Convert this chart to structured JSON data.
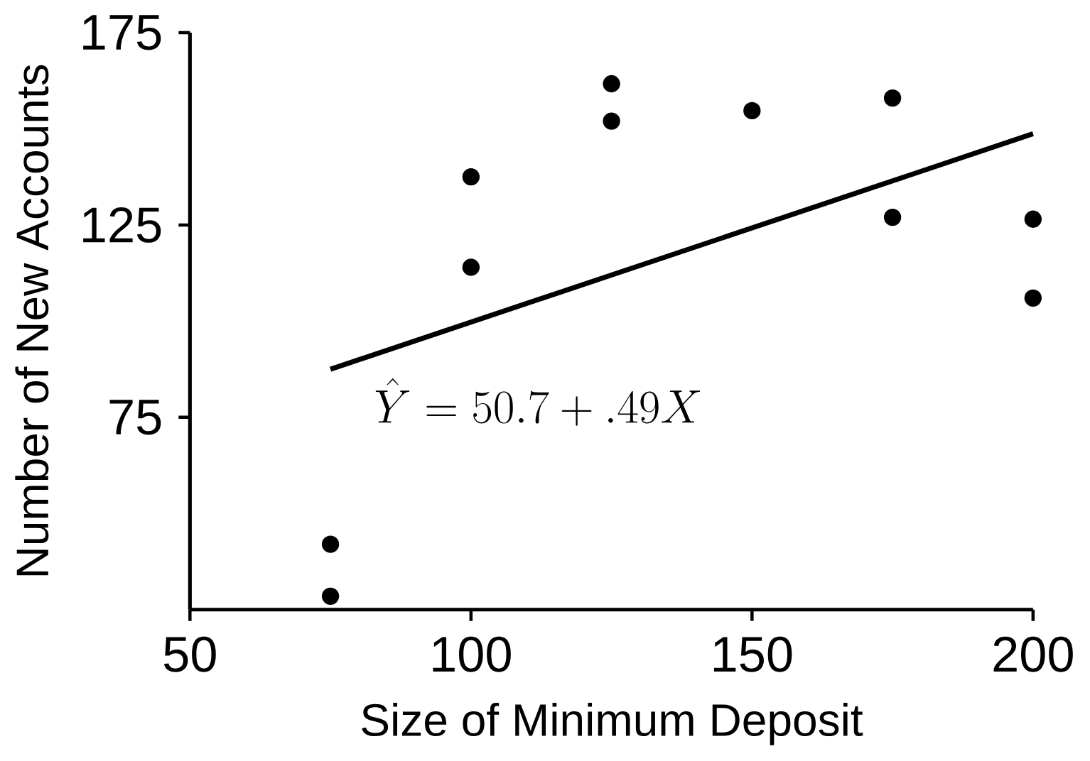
{
  "chart_data": {
    "type": "scatter",
    "xlabel": "Size of Minimum Deposit",
    "ylabel": "Number of New Accounts",
    "xlim": [
      50,
      200
    ],
    "ylim": [
      25,
      175
    ],
    "xticks": [
      50,
      100,
      150,
      200
    ],
    "yticks": [
      75,
      125,
      175
    ],
    "grid": false,
    "series": [
      {
        "color": "#000000",
        "marker": "circle",
        "x": [
          75,
          75,
          100,
          100,
          125,
          125,
          150,
          175,
          175,
          200,
          200
        ],
        "values": [
          42,
          28.5,
          137.5,
          114,
          161.7,
          152,
          154.7,
          158,
          127,
          126.5,
          106
        ]
      },
      {
        "type": "line",
        "color": "#000000",
        "x": [
          75,
          200
        ],
        "values": [
          87.5,
          148.7
        ]
      }
    ],
    "annotations": [
      "\\hat{Y} = 50.7 + .49X"
    ]
  }
}
